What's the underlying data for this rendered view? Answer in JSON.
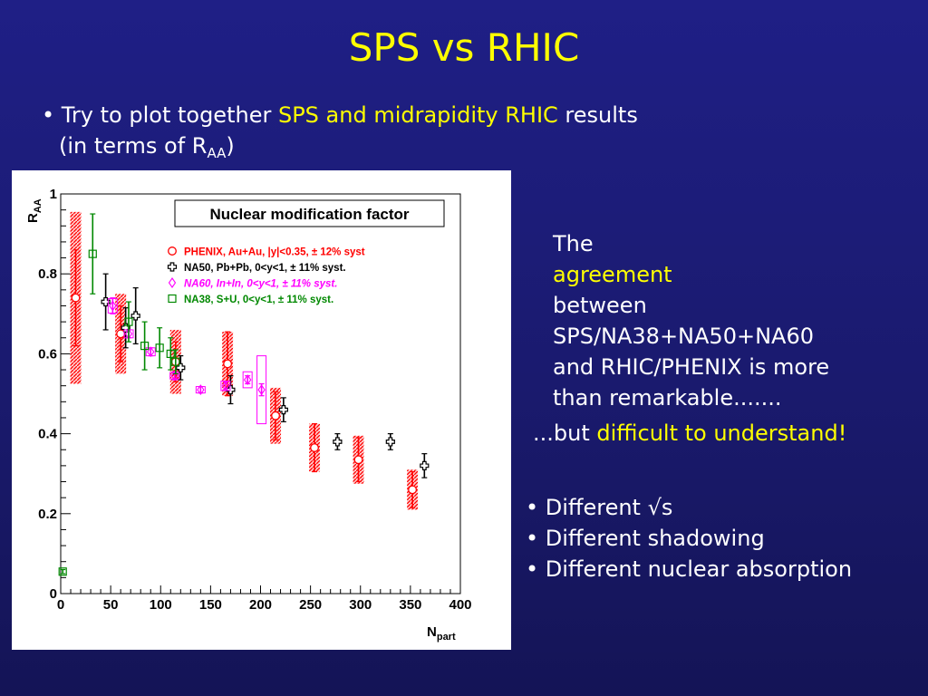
{
  "slide": {
    "title": "SPS vs RHIC",
    "bullet_main": {
      "bullet": "•",
      "pre": "Try to plot together",
      "highlight": "SPS and midrapidity RHIC",
      "post": "results",
      "line2_pre": "(in terms of R",
      "line2_sub": "AA",
      "line2_post": ")"
    },
    "right_text": {
      "l1_pre": "The",
      "l1_highlight": "agreement",
      "l1_post": "between",
      "l2": "SPS/NA38+NA50+NA60",
      "l3": "and RHIC/PHENIX is more",
      "l4": "than remarkable......."
    },
    "but_text": {
      "pre": "...but",
      "highlight": "difficult to understand!"
    },
    "differences": [
      "• Different √s",
      "• Different shadowing",
      "• Different nuclear absorption"
    ]
  },
  "chart_data": {
    "type": "scatter",
    "title": "Nuclear modification factor",
    "xlabel": "N",
    "xlabel_sub": "part",
    "ylabel": "R",
    "ylabel_sub": "AA",
    "xlim": [
      0,
      400
    ],
    "ylim": [
      0,
      1.0
    ],
    "reference_line": 1.0,
    "x_ticks": [
      "0",
      "50",
      "100",
      "150",
      "200",
      "250",
      "300",
      "350",
      "400"
    ],
    "y_ticks": [
      "0",
      "0.2",
      "0.4",
      "0.6",
      "0.8",
      "1"
    ],
    "legend_placement": "top-right",
    "colors": {
      "phenix": "#ff0000",
      "na50": "#000000",
      "na60": "#ff00ff",
      "na38": "#008800"
    },
    "series": [
      {
        "name": "PHENIX, Au+Au, |y|<0.35, ± 12% syst",
        "marker": "circle",
        "points": [
          {
            "x": 15,
            "y": 0.74,
            "stat": 0.12,
            "syst": 0.215
          },
          {
            "x": 60,
            "y": 0.65,
            "stat": 0.07,
            "syst": 0.1
          },
          {
            "x": 115,
            "y": 0.58,
            "stat": 0.05,
            "syst": 0.08
          },
          {
            "x": 167,
            "y": 0.575,
            "stat": 0.08,
            "syst": 0.08
          },
          {
            "x": 215,
            "y": 0.445,
            "stat": 0.06,
            "syst": 0.07
          },
          {
            "x": 254,
            "y": 0.365,
            "stat": 0.06,
            "syst": 0.06
          },
          {
            "x": 298,
            "y": 0.335,
            "stat": 0.055,
            "syst": 0.06
          },
          {
            "x": 352,
            "y": 0.26,
            "stat": 0.045,
            "syst": 0.05
          }
        ]
      },
      {
        "name": "NA50, Pb+Pb, 0<y<1, ± 11% syst.",
        "marker": "cross",
        "points": [
          {
            "x": 45,
            "y": 0.73,
            "stat": 0.07
          },
          {
            "x": 65,
            "y": 0.665,
            "stat": 0.05
          },
          {
            "x": 75,
            "y": 0.695,
            "stat": 0.07
          },
          {
            "x": 120,
            "y": 0.565,
            "stat": 0.03
          },
          {
            "x": 170,
            "y": 0.51,
            "stat": 0.035
          },
          {
            "x": 223,
            "y": 0.46,
            "stat": 0.03
          },
          {
            "x": 277,
            "y": 0.38,
            "stat": 0.02
          },
          {
            "x": 330,
            "y": 0.38,
            "stat": 0.02
          },
          {
            "x": 364,
            "y": 0.32,
            "stat": 0.03
          }
        ]
      },
      {
        "name": "NA60, In+In, 0<y<1, ± 11% syst.",
        "marker": "diamond",
        "points": [
          {
            "x": 52,
            "y": 0.72,
            "stat": 0.02,
            "syst": 0.018
          },
          {
            "x": 68,
            "y": 0.65,
            "stat": 0.01,
            "syst": 0.01
          },
          {
            "x": 90,
            "y": 0.605,
            "stat": 0.01,
            "syst": 0.01
          },
          {
            "x": 114,
            "y": 0.545,
            "stat": 0.01,
            "syst": 0.008
          },
          {
            "x": 140,
            "y": 0.51,
            "stat": 0.008,
            "syst": 0.008
          },
          {
            "x": 165,
            "y": 0.52,
            "stat": 0.01,
            "syst": 0.012
          },
          {
            "x": 187,
            "y": 0.535,
            "stat": 0.01,
            "syst": 0.02
          },
          {
            "x": 201,
            "y": 0.51,
            "stat": 0.015,
            "syst": 0.085
          }
        ]
      },
      {
        "name": "NA38, S+U, 0<y<1, ± 11% syst.",
        "marker": "square",
        "points": [
          {
            "x": 2,
            "y": 0.055,
            "stat": 0.005
          },
          {
            "x": 32,
            "y": 0.85,
            "stat": 0.1
          },
          {
            "x": 68,
            "y": 0.68,
            "stat": 0.05
          },
          {
            "x": 84,
            "y": 0.62,
            "stat": 0.06
          },
          {
            "x": 99,
            "y": 0.615,
            "stat": 0.05
          },
          {
            "x": 110,
            "y": 0.6,
            "stat": 0.04
          },
          {
            "x": 115,
            "y": 0.58,
            "stat": 0.03
          }
        ]
      }
    ]
  }
}
